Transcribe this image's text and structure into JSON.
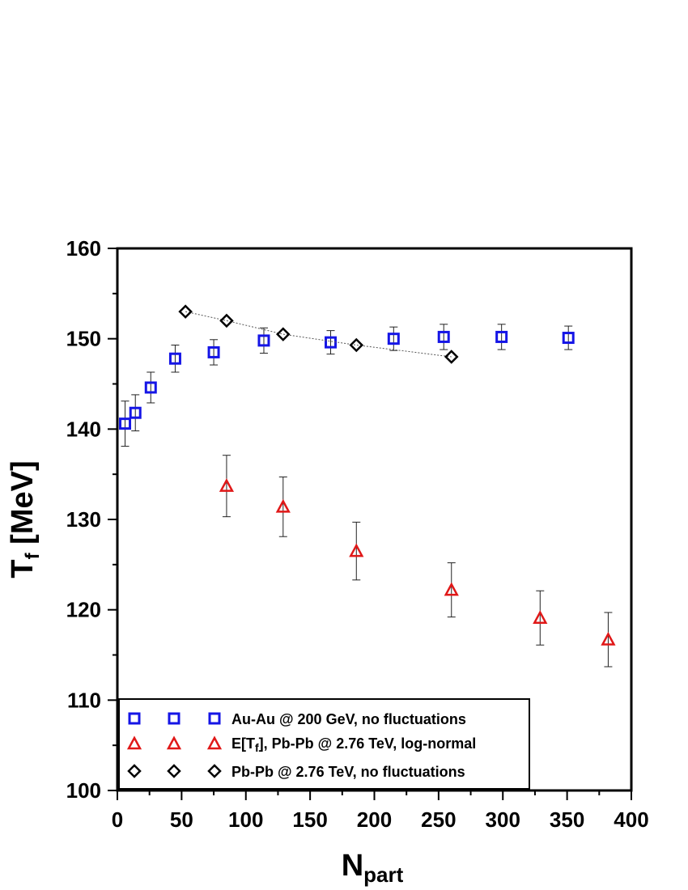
{
  "chart_data": {
    "type": "scatter",
    "xlabel": {
      "main": "N",
      "sub": "part"
    },
    "ylabel": {
      "main": "T",
      "sub": "f",
      "rest": " [MeV]"
    },
    "xlim": [
      0,
      400
    ],
    "ylim": [
      100,
      160
    ],
    "xticks": [
      0,
      50,
      100,
      150,
      200,
      250,
      300,
      350,
      400
    ],
    "yticks": [
      100,
      110,
      120,
      130,
      140,
      150,
      160
    ],
    "grid": false,
    "legend_position": "bottom-left",
    "series": [
      {
        "name": "Au-Au @ 200 GeV, no fluctuations",
        "marker": "square",
        "color": "#1515e6",
        "line": false,
        "points": [
          {
            "x": 6,
            "y": 140.6,
            "err": 2.5
          },
          {
            "x": 14,
            "y": 141.8,
            "err": 2.0
          },
          {
            "x": 26,
            "y": 144.6,
            "err": 1.7
          },
          {
            "x": 45,
            "y": 147.8,
            "err": 1.5
          },
          {
            "x": 75,
            "y": 148.5,
            "err": 1.4
          },
          {
            "x": 114,
            "y": 149.8,
            "err": 1.4
          },
          {
            "x": 166,
            "y": 149.6,
            "err": 1.3
          },
          {
            "x": 215,
            "y": 150.0,
            "err": 1.3
          },
          {
            "x": 254,
            "y": 150.2,
            "err": 1.4
          },
          {
            "x": 299,
            "y": 150.2,
            "err": 1.4
          },
          {
            "x": 351,
            "y": 150.1,
            "err": 1.3
          }
        ]
      },
      {
        "name_parts": [
          "E[T",
          "f",
          "], Pb-Pb @ 2.76 TeV, log-normal"
        ],
        "marker": "triangle",
        "color": "#e01818",
        "line": false,
        "points": [
          {
            "x": 85,
            "y": 133.7,
            "err": 3.4
          },
          {
            "x": 129,
            "y": 131.4,
            "err": 3.3
          },
          {
            "x": 186,
            "y": 126.5,
            "err": 3.2
          },
          {
            "x": 260,
            "y": 122.2,
            "err": 3.0
          },
          {
            "x": 329,
            "y": 119.1,
            "err": 3.0
          },
          {
            "x": 382,
            "y": 116.7,
            "err": 3.0
          }
        ]
      },
      {
        "name": "Pb-Pb @ 2.76 TeV, no fluctuations",
        "marker": "diamond",
        "color": "#000000",
        "line": true,
        "points": [
          {
            "x": 53,
            "y": 153.0
          },
          {
            "x": 85,
            "y": 152.0
          },
          {
            "x": 129,
            "y": 150.5
          },
          {
            "x": 186,
            "y": 149.3
          },
          {
            "x": 260,
            "y": 148.0
          }
        ]
      }
    ]
  }
}
